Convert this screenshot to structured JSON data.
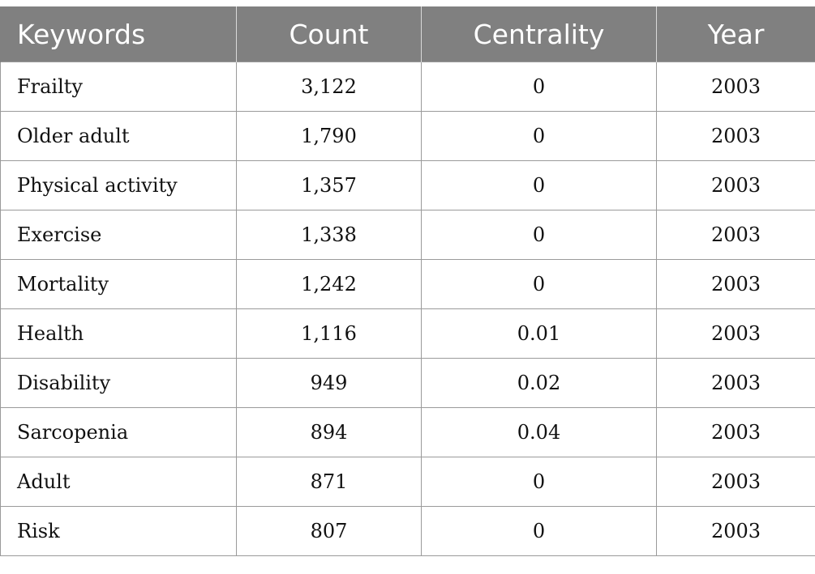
{
  "table": {
    "headers": {
      "keywords": "Keywords",
      "count": "Count",
      "centrality": "Centrality",
      "year": "Year"
    },
    "rows": [
      {
        "keyword": "Frailty",
        "count": "3,122",
        "centrality": "0",
        "year": "2003"
      },
      {
        "keyword": "Older adult",
        "count": "1,790",
        "centrality": "0",
        "year": "2003"
      },
      {
        "keyword": "Physical activity",
        "count": "1,357",
        "centrality": "0",
        "year": "2003"
      },
      {
        "keyword": "Exercise",
        "count": "1,338",
        "centrality": "0",
        "year": "2003"
      },
      {
        "keyword": "Mortality",
        "count": "1,242",
        "centrality": "0",
        "year": "2003"
      },
      {
        "keyword": "Health",
        "count": "1,116",
        "centrality": "0.01",
        "year": "2003"
      },
      {
        "keyword": "Disability",
        "count": "949",
        "centrality": "0.02",
        "year": "2003"
      },
      {
        "keyword": "Sarcopenia",
        "count": "894",
        "centrality": "0.04",
        "year": "2003"
      },
      {
        "keyword": "Adult",
        "count": "871",
        "centrality": "0",
        "year": "2003"
      },
      {
        "keyword": "Risk",
        "count": "807",
        "centrality": "0",
        "year": "2003"
      }
    ]
  }
}
